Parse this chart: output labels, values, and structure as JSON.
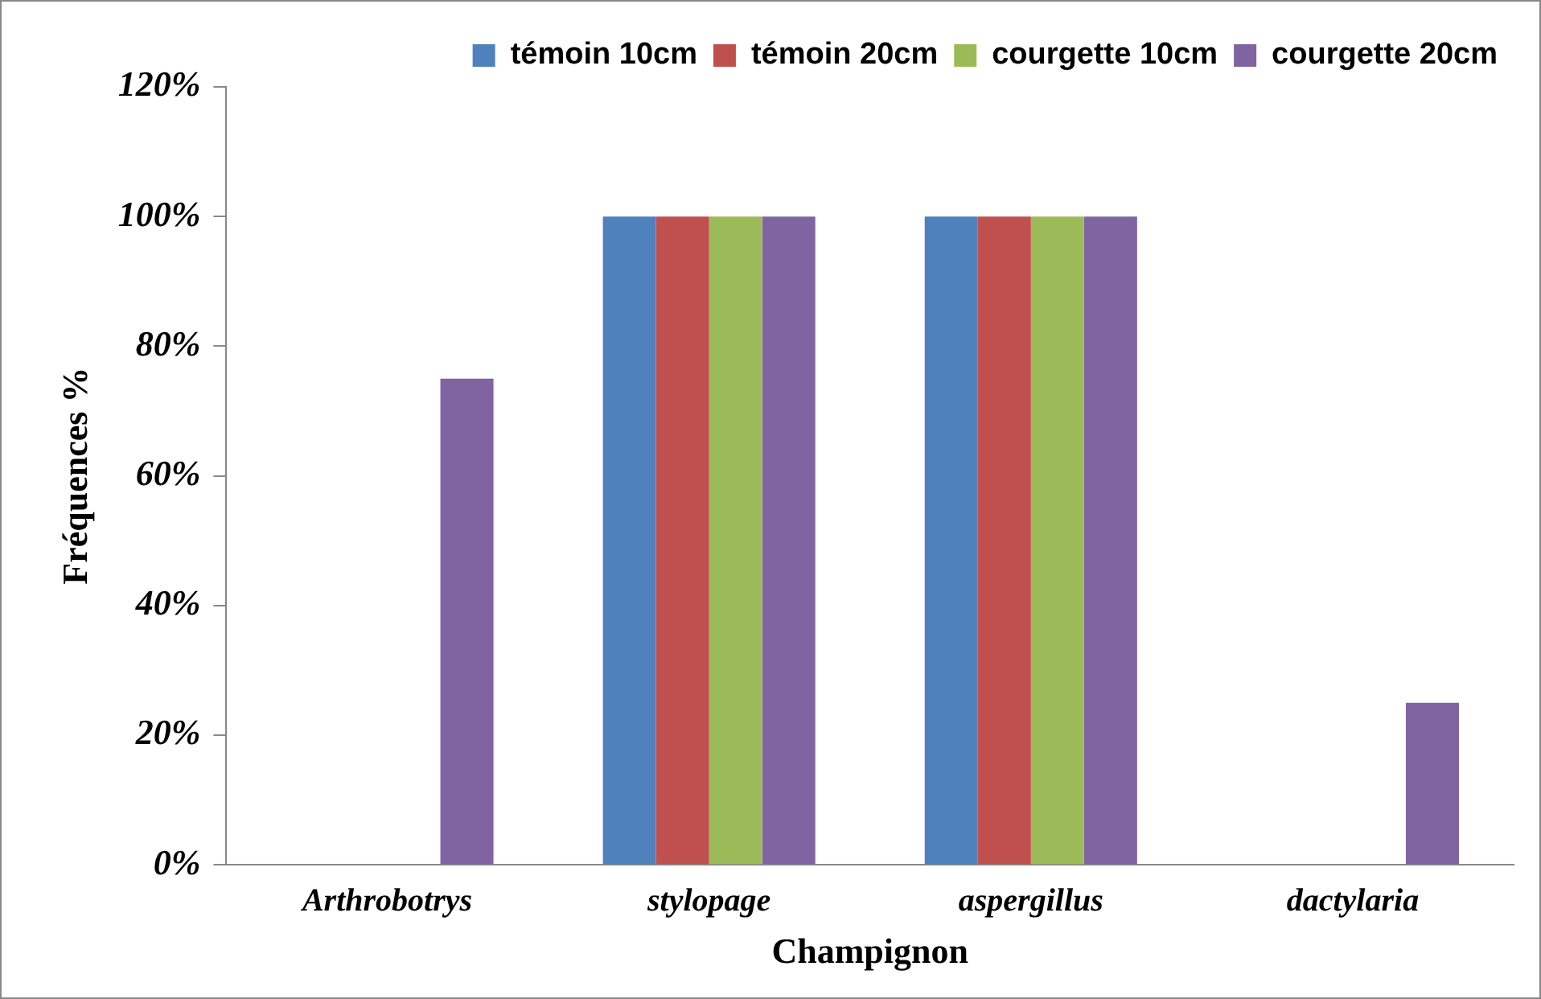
{
  "chart_data": {
    "type": "bar",
    "xlabel": "Champignon",
    "ylabel": "Fréquences %",
    "categories": [
      "Arthrobotrys",
      "stylopage",
      "aspergillus",
      "dactylaria"
    ],
    "series": [
      {
        "name": "témoin 10cm",
        "color": "#4f81bd",
        "values": [
          0,
          100,
          100,
          0
        ]
      },
      {
        "name": "témoin 20cm",
        "color": "#c0504d",
        "values": [
          0,
          100,
          100,
          0
        ]
      },
      {
        "name": "courgette 10cm",
        "color": "#9bbb59",
        "values": [
          0,
          100,
          100,
          0
        ]
      },
      {
        "name": "courgette 20cm",
        "color": "#8064a2",
        "values": [
          75,
          100,
          100,
          25
        ]
      }
    ],
    "ylim": [
      0,
      120
    ],
    "yticks": [
      {
        "value": 0,
        "label": "0%"
      },
      {
        "value": 20,
        "label": "20%"
      },
      {
        "value": 40,
        "label": "40%"
      },
      {
        "value": 60,
        "label": "60%"
      },
      {
        "value": 80,
        "label": "80%"
      },
      {
        "value": 100,
        "label": "100%"
      },
      {
        "value": 120,
        "label": "120%"
      }
    ],
    "grid": false,
    "legend": "top right"
  }
}
